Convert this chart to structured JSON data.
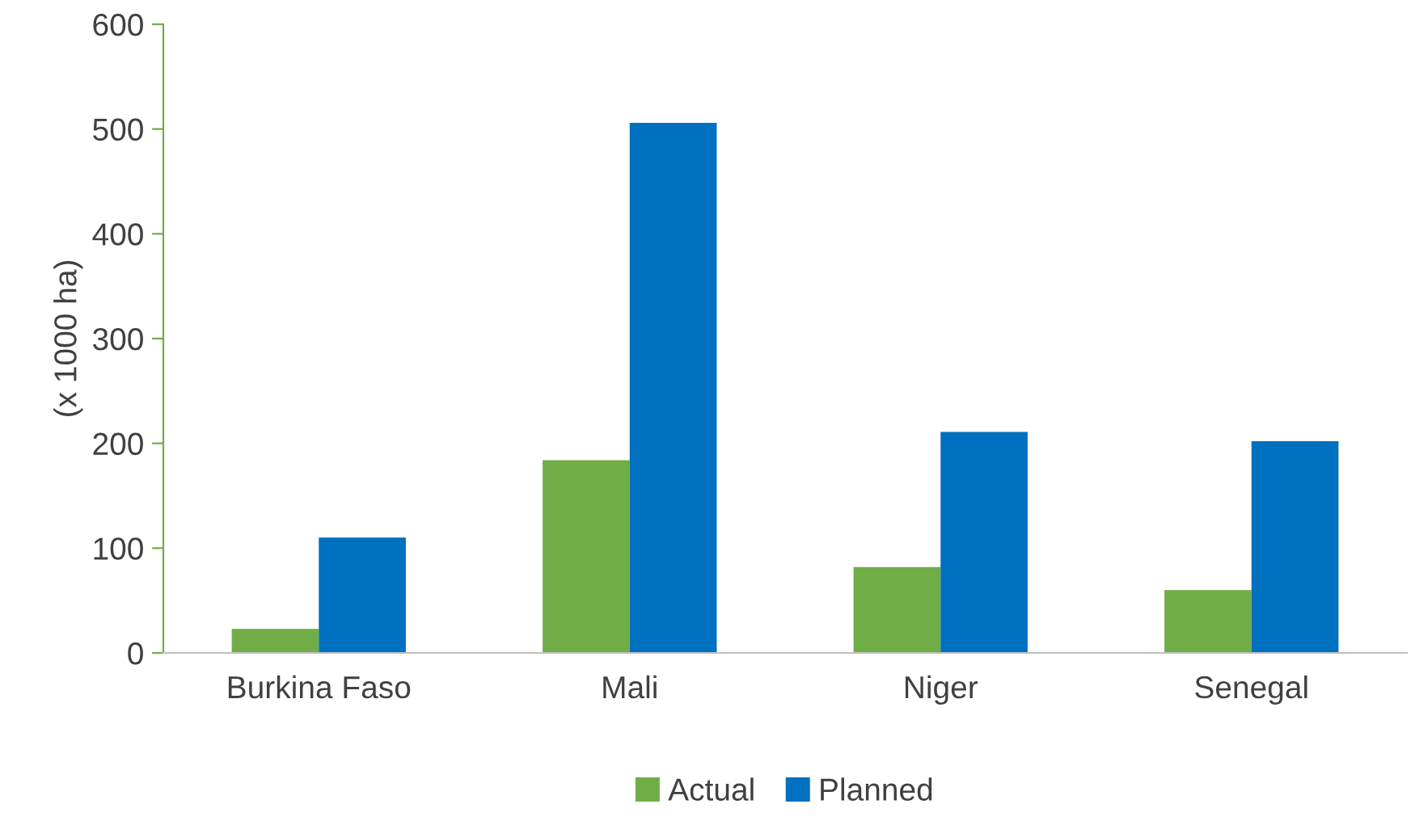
{
  "chart_data": {
    "type": "bar",
    "ylabel": "(x 1000 ha)",
    "categories": [
      "Burkina Faso",
      "Mali",
      "Niger",
      "Senegal"
    ],
    "series": [
      {
        "name": "Actual",
        "color": "#70ad47",
        "values": [
          23,
          184,
          82,
          60
        ]
      },
      {
        "name": "Planned",
        "color": "#0070c0",
        "values": [
          110,
          506,
          211,
          202
        ]
      }
    ],
    "ylim": [
      0,
      600
    ],
    "yticks": [
      0,
      100,
      200,
      300,
      400,
      500,
      600
    ],
    "grid": false,
    "legend": "bottom"
  }
}
